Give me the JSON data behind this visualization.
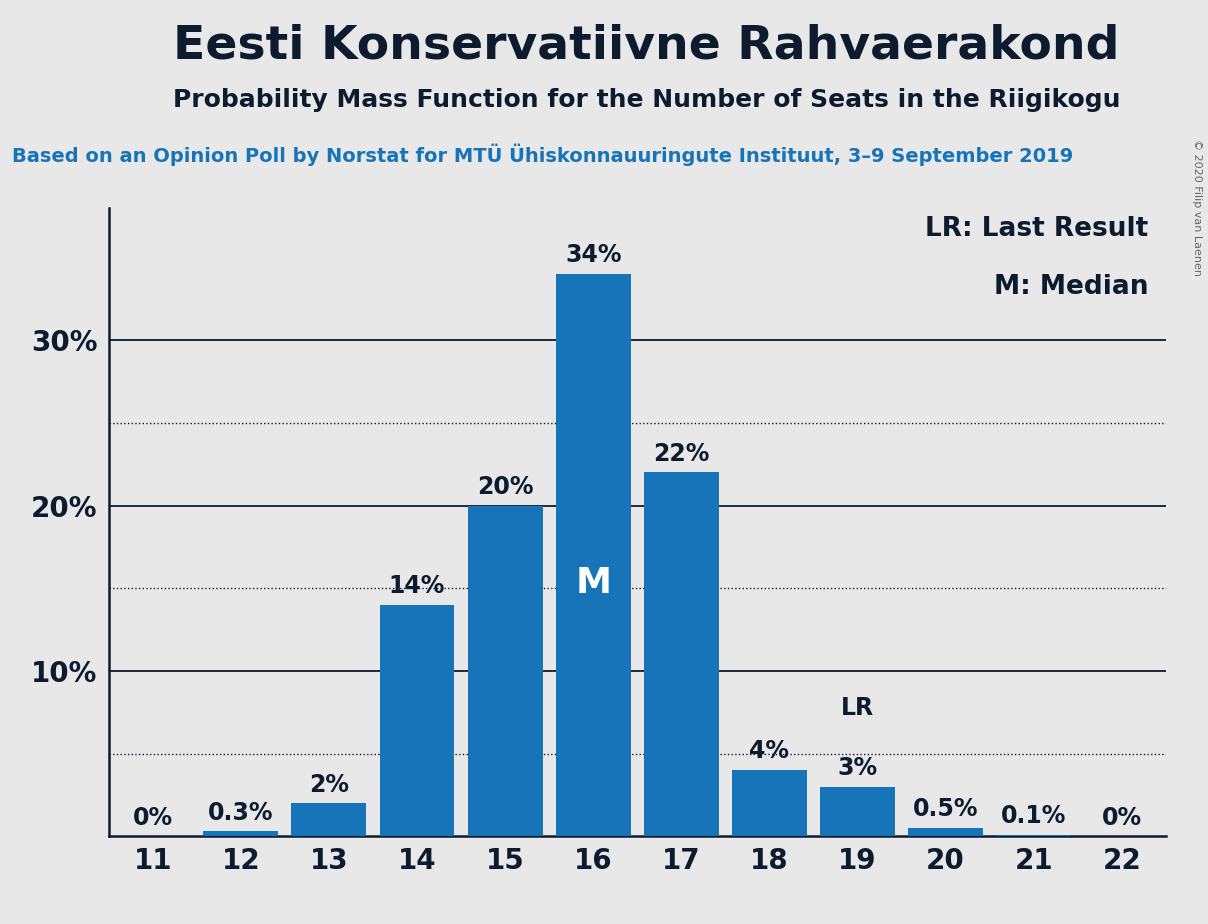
{
  "title": "Eesti Konservatiivne Rahvaerakond",
  "subtitle": "Probability Mass Function for the Number of Seats in the Riigikogu",
  "source_line": "Based on an Opinion Poll by Norstat for MTÜ Ühiskonnauuringute Instituut, 3–9 September 2019",
  "copyright_text": "© 2020 Filip van Laenen",
  "seats": [
    11,
    12,
    13,
    14,
    15,
    16,
    17,
    18,
    19,
    20,
    21,
    22
  ],
  "probabilities": [
    0.0,
    0.3,
    2.0,
    14.0,
    20.0,
    34.0,
    22.0,
    4.0,
    3.0,
    0.5,
    0.1,
    0.0
  ],
  "bar_color": "#1874b8",
  "background_color": "#e8e8e8",
  "text_color": "#0d1b2e",
  "median_seat": 16,
  "last_result_seat": 19,
  "legend_text_lr": "LR: Last Result",
  "legend_text_m": "M: Median",
  "dotted_lines": [
    5,
    15,
    25
  ],
  "solid_lines": [
    10,
    20,
    30
  ],
  "xlim": [
    10.5,
    22.5
  ],
  "ylim": [
    0,
    38
  ],
  "bar_width": 0.85,
  "title_fontsize": 34,
  "subtitle_fontsize": 18,
  "source_fontsize": 14,
  "bar_label_fontsize": 17,
  "axis_label_fontsize": 20,
  "legend_fontsize": 19
}
